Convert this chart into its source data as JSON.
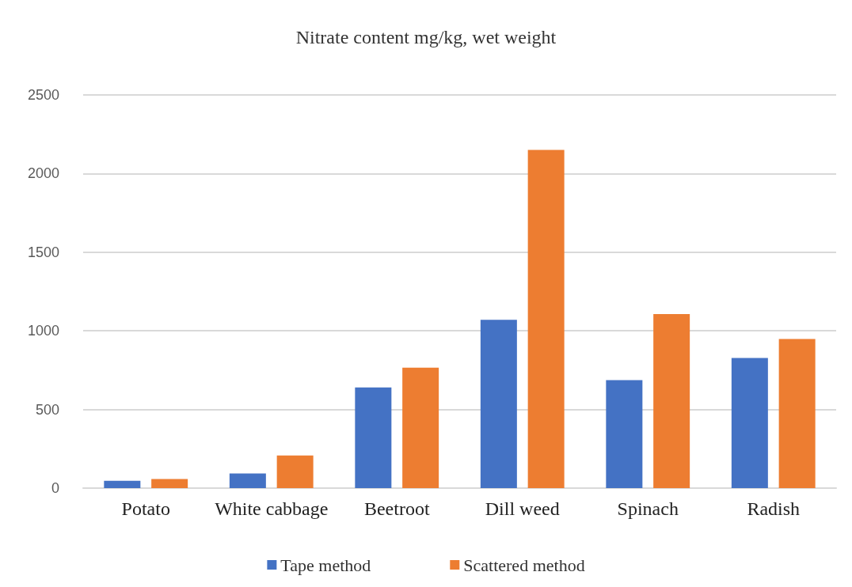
{
  "chart_data": {
    "type": "bar",
    "title": "Nitrate content mg/kg, wet weight",
    "categories": [
      "Potato",
      "White cabbage",
      "Beetroot",
      "Dill weed",
      "Spinach",
      "Radish"
    ],
    "series": [
      {
        "name": "Tape method",
        "color": "#4472c4",
        "values": [
          46,
          93,
          640,
          1070,
          686,
          827
        ]
      },
      {
        "name": "Scattered method",
        "color": "#ed7d31",
        "values": [
          58,
          207,
          766,
          2150,
          1107,
          948
        ]
      }
    ],
    "ylim": [
      0,
      2500
    ],
    "yticks": [
      0,
      500,
      1000,
      1500,
      2000,
      2500
    ],
    "grid": "y",
    "legend": "bottom"
  }
}
